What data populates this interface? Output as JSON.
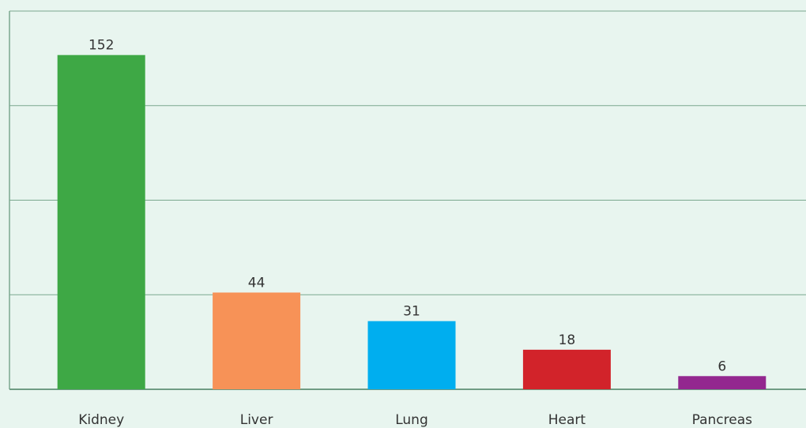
{
  "chart_data": {
    "type": "bar",
    "categories": [
      "Kidney",
      "Liver",
      "Lung",
      "Heart",
      "Pancreas"
    ],
    "values": [
      152,
      44,
      31,
      18,
      6
    ],
    "colors": [
      "#3ea845",
      "#f79257",
      "#00aeef",
      "#d2232a",
      "#93278f"
    ],
    "ylim": [
      0,
      172
    ],
    "yticks": [
      0,
      43,
      86,
      129,
      172
    ],
    "grid": true
  }
}
